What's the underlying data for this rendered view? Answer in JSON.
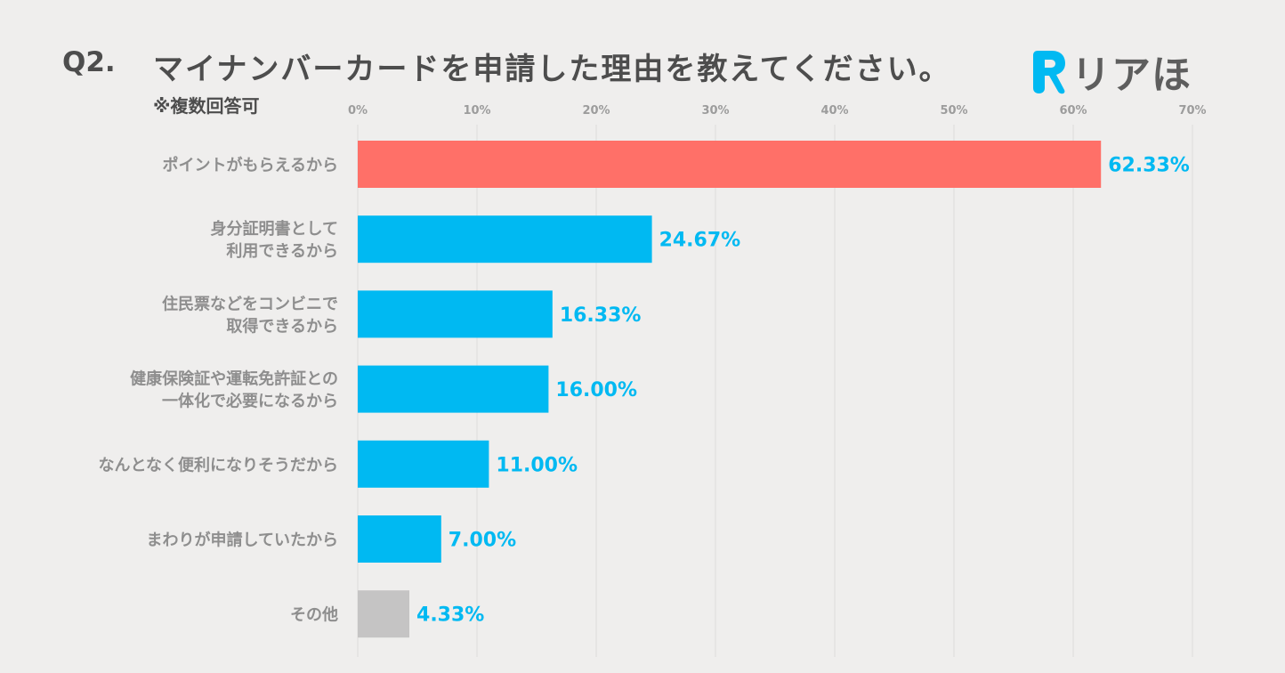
{
  "header": {
    "question_number": "Q2.",
    "title": "マイナンバーカードを申請した理由を教えてください。",
    "note": "※複数回答可"
  },
  "logo": {
    "mark": "R",
    "text": "リアほ",
    "mark_color": "#00b9f2"
  },
  "colors": {
    "highlight": "#ff7068",
    "default": "#00b9f2",
    "other": "#c5c4c4",
    "value_text": "#00b9f2",
    "grid": "#dedcdb"
  },
  "chart_data": {
    "type": "bar",
    "orientation": "horizontal",
    "title": "マイナンバーカードを申請した理由を教えてください。",
    "xlim": [
      0,
      70
    ],
    "x_ticks": [
      "0%",
      "10%",
      "20%",
      "30%",
      "40%",
      "50%",
      "60%",
      "70%"
    ],
    "categories": [
      [
        "ポイントがもらえるから"
      ],
      [
        "身分証明書として",
        "利用できるから"
      ],
      [
        "住民票などをコンビニで",
        "取得できるから"
      ],
      [
        "健康保険証や運転免許証との",
        "一体化で必要になるから"
      ],
      [
        "なんとなく便利になりそうだから"
      ],
      [
        "まわりが申請していたから"
      ],
      [
        "その他"
      ]
    ],
    "values": [
      62.33,
      24.67,
      16.33,
      16.0,
      11.0,
      7.0,
      4.33
    ],
    "value_labels": [
      "62.33%",
      "24.67%",
      "16.33%",
      "16.00%",
      "11.00%",
      "7.00%",
      "4.33%"
    ],
    "bar_styles": [
      "highlight",
      "default",
      "default",
      "default",
      "default",
      "default",
      "other"
    ],
    "grid": true
  }
}
